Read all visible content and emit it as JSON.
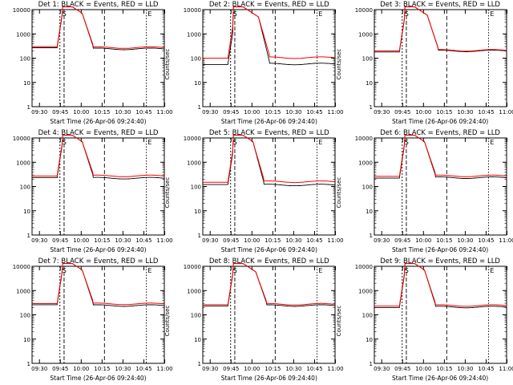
{
  "chart_data": [
    {
      "type": "line",
      "title": "Det 1: BLACK = Events, RED = LLD",
      "xlabel": "Start Time (26-Apr-06 09:24:40)",
      "ylabel": "Counts/sec",
      "events_level": 270,
      "lld_level": 300,
      "events_tail": 230,
      "lld_tail": 260
    },
    {
      "type": "line",
      "title": "Det 2: BLACK = Events, RED = LLD",
      "xlabel": "Start Time (26-Apr-06 09:24:40)",
      "ylabel": "Counts/sec",
      "events_level": 55,
      "lld_level": 100,
      "events_tail": 55,
      "lld_tail": 100
    },
    {
      "type": "line",
      "title": "Det 3: BLACK = Events, RED = LLD",
      "xlabel": "Start Time (26-Apr-06 09:24:40)",
      "ylabel": "Counts/sec",
      "events_level": 180,
      "lld_level": 200,
      "events_tail": 190,
      "lld_tail": 200
    },
    {
      "type": "line",
      "title": "Det 4: BLACK = Events, RED = LLD",
      "xlabel": "Start Time (26-Apr-06 09:24:40)",
      "ylabel": "Counts/sec",
      "events_level": 230,
      "lld_level": 270,
      "events_tail": 210,
      "lld_tail": 260
    },
    {
      "type": "line",
      "title": "Det 5: BLACK = Events, RED = LLD",
      "xlabel": "Start Time (26-Apr-06 09:24:40)",
      "ylabel": "Counts/sec",
      "events_level": 120,
      "lld_level": 150,
      "events_tail": 110,
      "lld_tail": 150
    },
    {
      "type": "line",
      "title": "Det 6: BLACK = Events, RED = LLD",
      "xlabel": "Start Time (26-Apr-06 09:24:40)",
      "ylabel": "Counts/sec",
      "events_level": 220,
      "lld_level": 260,
      "events_tail": 220,
      "lld_tail": 260
    },
    {
      "type": "line",
      "title": "Det 7: BLACK = Events, RED = LLD",
      "xlabel": "Start Time (26-Apr-06 09:24:40)",
      "ylabel": "Counts/sec",
      "events_level": 260,
      "lld_level": 290,
      "events_tail": 230,
      "lld_tail": 270
    },
    {
      "type": "line",
      "title": "Det 8: BLACK = Events, RED = LLD",
      "xlabel": "Start Time (26-Apr-06 09:24:40)",
      "ylabel": "Counts/sec",
      "events_level": 230,
      "lld_level": 260,
      "events_tail": 230,
      "lld_tail": 260
    },
    {
      "type": "line",
      "title": "Det 9: BLACK = Events, RED = LLD",
      "xlabel": "Start Time (26-Apr-06 09:24:40)",
      "ylabel": "Counts/sec",
      "events_level": 200,
      "lld_level": 230,
      "events_tail": 200,
      "lld_tail": 230
    }
  ],
  "axes": {
    "x_ticks": [
      "09:30",
      "09:45",
      "10:00",
      "10:15",
      "10:30",
      "10:45",
      "11:00"
    ],
    "y_ticks": [
      "1",
      "10",
      "100",
      "1000",
      "10000"
    ],
    "ylim": [
      1,
      10000
    ],
    "x_range_minutes": [
      0,
      95
    ]
  },
  "markers": {
    "vlines_minutes": [
      20,
      23,
      52,
      82
    ],
    "labels": [
      "S",
      "E"
    ]
  },
  "colors": {
    "events": "#000000",
    "lld": "#ff0000"
  }
}
